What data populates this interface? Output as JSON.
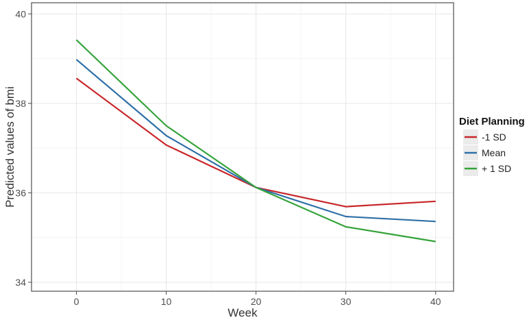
{
  "chart_data": {
    "type": "line",
    "xlabel": "Week",
    "ylabel": "Predicted values of bmi",
    "x": [
      0,
      10,
      20,
      30,
      40
    ],
    "xlim": [
      -5,
      42
    ],
    "ylim": [
      33.8,
      40.25
    ],
    "x_ticks": [
      0,
      10,
      20,
      30,
      40
    ],
    "y_ticks": [
      34,
      36,
      38,
      40
    ],
    "grid": true,
    "legend": {
      "title": "Diet Planning",
      "placement": "right"
    },
    "series": [
      {
        "name": "-1 SD",
        "color": "#c8262a",
        "values": [
          38.56,
          37.07,
          36.12,
          35.69,
          35.81
        ]
      },
      {
        "name": "Mean",
        "color": "#2e6fa7",
        "values": [
          38.98,
          37.28,
          36.12,
          35.47,
          35.36
        ]
      },
      {
        "name": "+ 1 SD",
        "color": "#35a33a",
        "values": [
          39.42,
          37.5,
          36.12,
          35.24,
          34.91
        ]
      }
    ]
  }
}
